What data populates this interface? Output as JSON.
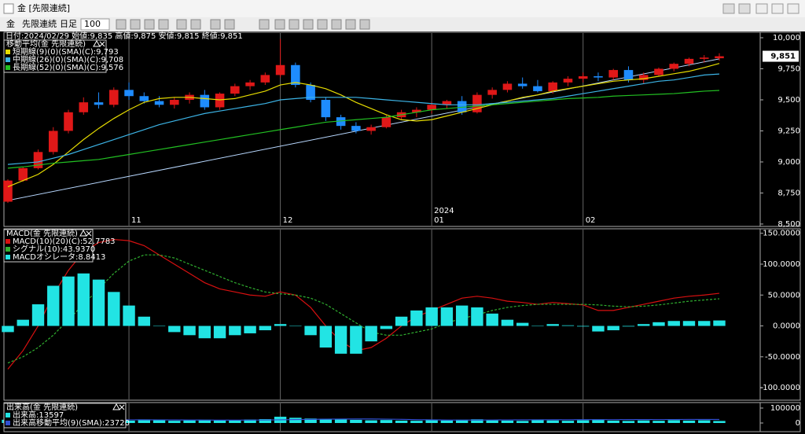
{
  "window": {
    "title": "金 [先限連続]",
    "toolbar": {
      "symbol": "金",
      "contract": "先限連続",
      "period": "日足",
      "count": "100"
    }
  },
  "chart_data": [
    {
      "type": "candlestick",
      "info": "日付:2024/02/29 始値:9,835 高値:9,875 安値:9,815 終値:9,851",
      "legend_title": "移動平均(金 先限連続)",
      "ylim": [
        8487,
        10038
      ],
      "yticks": [
        {
          "value": 10000,
          "label": "10,000"
        },
        {
          "value": 9750,
          "label": "9,750"
        },
        {
          "value": 9500,
          "label": "9,500"
        },
        {
          "value": 9250,
          "label": "9,250"
        },
        {
          "value": 9000,
          "label": "9,000"
        },
        {
          "value": 8750,
          "label": "8,750"
        },
        {
          "value": 8500,
          "label": "8,500"
        }
      ],
      "xticks": [
        {
          "value": 8,
          "label": "11"
        },
        {
          "value": 18,
          "label": "12"
        },
        {
          "value": 28,
          "label": "01"
        },
        {
          "value": 38,
          "label": "02"
        }
      ],
      "year_label": {
        "value": 28,
        "label": "2024"
      },
      "last_label": {
        "value": 9851,
        "label": "9,851"
      },
      "up_color": "#e01818",
      "down_color": "#1e8cff",
      "trendline": [
        8690,
        9830
      ],
      "trendline_color": "#b8d8ff",
      "candles": [
        [
          8680,
          8860,
          8670,
          8850
        ],
        [
          8850,
          8960,
          8840,
          8950
        ],
        [
          8950,
          9100,
          8940,
          9080
        ],
        [
          9080,
          9280,
          9060,
          9250
        ],
        [
          9250,
          9420,
          9230,
          9400
        ],
        [
          9400,
          9520,
          9380,
          9480
        ],
        [
          9480,
          9560,
          9430,
          9460
        ],
        [
          9460,
          9600,
          9440,
          9580
        ],
        [
          9580,
          9640,
          9500,
          9530
        ],
        [
          9530,
          9560,
          9470,
          9490
        ],
        [
          9490,
          9530,
          9440,
          9460
        ],
        [
          9460,
          9520,
          9430,
          9500
        ],
        [
          9500,
          9560,
          9470,
          9540
        ],
        [
          9540,
          9580,
          9420,
          9440
        ],
        [
          9440,
          9560,
          9420,
          9550
        ],
        [
          9550,
          9630,
          9530,
          9610
        ],
        [
          9610,
          9660,
          9580,
          9640
        ],
        [
          9640,
          9720,
          9620,
          9700
        ],
        [
          9700,
          9990,
          9680,
          9780
        ],
        [
          9780,
          9800,
          9600,
          9620
        ],
        [
          9620,
          9640,
          9480,
          9500
        ],
        [
          9500,
          9520,
          9330,
          9360
        ],
        [
          9360,
          9380,
          9260,
          9290
        ],
        [
          9290,
          9320,
          9230,
          9250
        ],
        [
          9250,
          9300,
          9220,
          9280
        ],
        [
          9280,
          9380,
          9270,
          9360
        ],
        [
          9360,
          9420,
          9340,
          9400
        ],
        [
          9400,
          9440,
          9360,
          9420
        ],
        [
          9420,
          9480,
          9390,
          9460
        ],
        [
          9460,
          9500,
          9430,
          9490
        ],
        [
          9490,
          9530,
          9380,
          9400
        ],
        [
          9400,
          9560,
          9390,
          9540
        ],
        [
          9540,
          9600,
          9510,
          9580
        ],
        [
          9580,
          9650,
          9560,
          9630
        ],
        [
          9630,
          9680,
          9590,
          9610
        ],
        [
          9610,
          9660,
          9560,
          9570
        ],
        [
          9570,
          9650,
          9550,
          9640
        ],
        [
          9640,
          9690,
          9610,
          9670
        ],
        [
          9670,
          9720,
          9640,
          9690
        ],
        [
          9690,
          9720,
          9650,
          9680
        ],
        [
          9680,
          9750,
          9660,
          9740
        ],
        [
          9740,
          9770,
          9640,
          9660
        ],
        [
          9660,
          9720,
          9630,
          9700
        ],
        [
          9700,
          9760,
          9690,
          9750
        ],
        [
          9750,
          9800,
          9730,
          9790
        ],
        [
          9790,
          9840,
          9770,
          9830
        ],
        [
          9830,
          9860,
          9800,
          9840
        ],
        [
          9835,
          9875,
          9815,
          9851
        ]
      ],
      "series": [
        {
          "name": "短期線(9)(0)(SMA)(C):9,793",
          "color": "#e6dc00",
          "kind": "line",
          "values": [
            8800,
            8850,
            8900,
            8980,
            9080,
            9180,
            9270,
            9350,
            9420,
            9480,
            9510,
            9520,
            9520,
            9510,
            9500,
            9510,
            9540,
            9570,
            9620,
            9640,
            9620,
            9590,
            9540,
            9480,
            9430,
            9380,
            9340,
            9330,
            9340,
            9370,
            9400,
            9430,
            9460,
            9490,
            9520,
            9540,
            9570,
            9590,
            9610,
            9630,
            9650,
            9660,
            9670,
            9690,
            9710,
            9730,
            9760,
            9793
          ]
        },
        {
          "name": "中期線(26)(0)(SMA)(C):9,708",
          "color": "#3cb4e6",
          "kind": "line",
          "values": [
            8980,
            8990,
            9000,
            9030,
            9060,
            9100,
            9140,
            9180,
            9220,
            9260,
            9300,
            9330,
            9360,
            9390,
            9410,
            9430,
            9450,
            9470,
            9500,
            9510,
            9520,
            9520,
            9520,
            9520,
            9510,
            9500,
            9490,
            9480,
            9470,
            9460,
            9460,
            9460,
            9470,
            9480,
            9490,
            9500,
            9510,
            9530,
            9550,
            9570,
            9590,
            9610,
            9630,
            9650,
            9660,
            9680,
            9700,
            9708
          ]
        },
        {
          "name": "長期線(52)(0)(SMA)(C):9,576",
          "color": "#22c022",
          "kind": "line",
          "values": [
            8950,
            8960,
            8975,
            8990,
            9000,
            9010,
            9020,
            9040,
            9060,
            9080,
            9100,
            9120,
            9140,
            9160,
            9180,
            9200,
            9220,
            9240,
            9260,
            9280,
            9300,
            9320,
            9330,
            9340,
            9350,
            9360,
            9380,
            9400,
            9420,
            9430,
            9440,
            9450,
            9460,
            9470,
            9480,
            9490,
            9500,
            9510,
            9515,
            9520,
            9530,
            9535,
            9540,
            9545,
            9550,
            9560,
            9570,
            9576
          ]
        }
      ]
    },
    {
      "type": "combo",
      "legend_title": "MACD(金 先限連続)",
      "ylim": [
        -119,
        156
      ],
      "yticks": [
        {
          "value": 150,
          "label": "150.0000"
        },
        {
          "value": 100,
          "label": "100.0000"
        },
        {
          "value": 50,
          "label": "50.0000"
        },
        {
          "value": 0,
          "label": "0.0000"
        },
        {
          "value": -50,
          "label": "-50.0000"
        },
        {
          "value": -100,
          "label": "-100.0000"
        }
      ],
      "series": [
        {
          "name": "MACD(10)(20)(C):52.7783",
          "color": "#d81010",
          "kind": "line",
          "values": [
            -70,
            -40,
            0,
            50,
            90,
            120,
            135,
            140,
            138,
            130,
            115,
            100,
            85,
            70,
            60,
            55,
            50,
            48,
            55,
            50,
            30,
            0,
            -25,
            -40,
            -35,
            -20,
            0,
            15,
            25,
            35,
            45,
            48,
            45,
            40,
            38,
            35,
            38,
            36,
            34,
            25,
            25,
            30,
            35,
            40,
            45,
            48,
            50,
            52.7783
          ]
        },
        {
          "name": "シグナル(10):43.9370",
          "color": "#30b030",
          "kind": "line",
          "dashed": true,
          "values": [
            -60,
            -50,
            -35,
            -15,
            10,
            35,
            60,
            85,
            105,
            115,
            115,
            110,
            100,
            90,
            80,
            70,
            62,
            55,
            52,
            50,
            45,
            35,
            20,
            5,
            -10,
            -15,
            -15,
            -10,
            -5,
            5,
            12,
            18,
            25,
            30,
            33,
            35,
            35,
            35,
            35,
            34,
            32,
            31,
            32,
            34,
            37,
            40,
            42,
            43.937
          ]
        },
        {
          "name": "MACDオシレータ:8.8413",
          "color": "#22e4e4",
          "kind": "bar",
          "values": [
            -10,
            10,
            35,
            65,
            80,
            85,
            75,
            55,
            33,
            15,
            0,
            -10,
            -15,
            -20,
            -20,
            -15,
            -12,
            -7,
            3,
            0,
            -15,
            -35,
            -45,
            -45,
            -25,
            -5,
            15,
            25,
            30,
            30,
            33,
            30,
            20,
            10,
            5,
            0,
            3,
            1,
            -1,
            -9,
            -7,
            -1,
            3,
            6,
            8,
            8,
            8,
            8.8413
          ]
        }
      ]
    },
    {
      "type": "combo",
      "legend_title": "出来高(金 先限連続)",
      "ylim": [
        -52600,
        131600
      ],
      "yticks": [
        100000,
        0
      ],
      "series": [
        {
          "name": "出来高:13597",
          "color": "#22e4e4",
          "kind": "bar",
          "values": [
            22000,
            28000,
            25000,
            20000,
            26000,
            18000,
            21000,
            17000,
            16000,
            24000,
            19000,
            15000,
            18000,
            22000,
            20000,
            17000,
            23000,
            26000,
            42000,
            35000,
            30000,
            28000,
            24000,
            21000,
            18000,
            20000,
            16000,
            15000,
            19000,
            17000,
            22000,
            25000,
            18000,
            16000,
            14000,
            20000,
            17000,
            15000,
            18000,
            21000,
            16000,
            14000,
            17000,
            15000,
            19000,
            16000,
            18000,
            13597
          ]
        },
        {
          "name": "出来高移動平均(9)(SMA):23720",
          "color": "#3050d0",
          "kind": "line",
          "values": [
            22000,
            22500,
            23000,
            23200,
            23500,
            23000,
            22500,
            22000,
            21500,
            21000,
            20800,
            20500,
            19800,
            19500,
            19300,
            19200,
            19400,
            20000,
            21500,
            23000,
            24500,
            25500,
            26500,
            27000,
            27000,
            26000,
            24500,
            22500,
            21000,
            19800,
            19500,
            19800,
            20200,
            20600,
            21000,
            21300,
            21600,
            21900,
            22200,
            22500,
            22800,
            23000,
            23200,
            23400,
            23500,
            23600,
            23650,
            23720
          ]
        }
      ]
    }
  ]
}
